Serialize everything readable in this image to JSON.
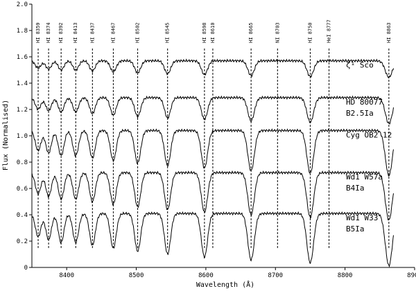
{
  "chart_data": {
    "type": "line",
    "xlabel": "Wavelength (Å)",
    "ylabel": "Flux (Normalised)",
    "xlim": [
      8350,
      8900
    ],
    "ylim": [
      0.0,
      2.0
    ],
    "x_ticks": [
      {
        "value": 8400,
        "label": "8400"
      },
      {
        "value": 8500,
        "label": "8500"
      },
      {
        "value": 8600,
        "label": "8600"
      },
      {
        "value": 8700,
        "label": "8700"
      },
      {
        "value": 8800,
        "label": "8800"
      },
      {
        "value": 8900,
        "label": "8900"
      }
    ],
    "y_ticks": [
      {
        "value": 0.0,
        "label": "0"
      },
      {
        "value": 0.2,
        "label": "0.2"
      },
      {
        "value": 0.4,
        "label": "0.4"
      },
      {
        "value": 0.6,
        "label": "0.6"
      },
      {
        "value": 0.8,
        "label": "0.8"
      },
      {
        "value": 1.0,
        "label": "1.0"
      },
      {
        "value": 1.2,
        "label": "1.2"
      },
      {
        "value": 1.4,
        "label": "1.4"
      },
      {
        "value": 1.6,
        "label": "1.6"
      },
      {
        "value": 1.8,
        "label": "1.8"
      },
      {
        "value": 2.0,
        "label": "2.0"
      }
    ],
    "line_ids": [
      {
        "wavelength": 8359,
        "label": "HI 8359"
      },
      {
        "wavelength": 8374,
        "label": "HI 8374"
      },
      {
        "wavelength": 8392,
        "label": "HI 8392"
      },
      {
        "wavelength": 8413,
        "label": "HI 8413"
      },
      {
        "wavelength": 8437,
        "label": "HI 8437"
      },
      {
        "wavelength": 8467,
        "label": "HI 8467"
      },
      {
        "wavelength": 8502,
        "label": "HI 8502"
      },
      {
        "wavelength": 8545,
        "label": "HI 8545"
      },
      {
        "wavelength": 8598,
        "label": "HI 8598"
      },
      {
        "wavelength": 8610,
        "label": "HI 8610"
      },
      {
        "wavelength": 8665,
        "label": "HI 8665"
      },
      {
        "wavelength": 8703,
        "label": "NI 8703"
      },
      {
        "wavelength": 8750,
        "label": "HI 8750"
      },
      {
        "wavelength": 8777,
        "label": "HeI 8777"
      },
      {
        "wavelength": 8863,
        "label": "HI 8863"
      }
    ],
    "spectra": [
      {
        "label_lines": [
          "ζ¹ Sco"
        ],
        "continuum": 1.57,
        "scale": 0.35
      },
      {
        "label_lines": [
          "HD 80077",
          "B2.5Ia"
        ],
        "continuum": 1.29,
        "scale": 0.55
      },
      {
        "label_lines": [
          "Cyg OB2 12"
        ],
        "continuum": 1.04,
        "scale": 0.95
      },
      {
        "label_lines": [
          "Wd1 W57a",
          "B4Ia"
        ],
        "continuum": 0.72,
        "scale": 1.0
      },
      {
        "label_lines": [
          "Wd1 W33",
          "B5Ia"
        ],
        "continuum": 0.41,
        "scale": 1.1
      }
    ],
    "absorption_lines": [
      {
        "wavelength": 8359,
        "depth": 0.16
      },
      {
        "wavelength": 8374,
        "depth": 0.18
      },
      {
        "wavelength": 8392,
        "depth": 0.2
      },
      {
        "wavelength": 8413,
        "depth": 0.2
      },
      {
        "wavelength": 8437,
        "depth": 0.22
      },
      {
        "wavelength": 8467,
        "depth": 0.24
      },
      {
        "wavelength": 8502,
        "depth": 0.26
      },
      {
        "wavelength": 8545,
        "depth": 0.28
      },
      {
        "wavelength": 8598,
        "depth": 0.3
      },
      {
        "wavelength": 8665,
        "depth": 0.32
      },
      {
        "wavelength": 8750,
        "depth": 0.34
      },
      {
        "wavelength": 8863,
        "depth": 0.36
      }
    ]
  }
}
